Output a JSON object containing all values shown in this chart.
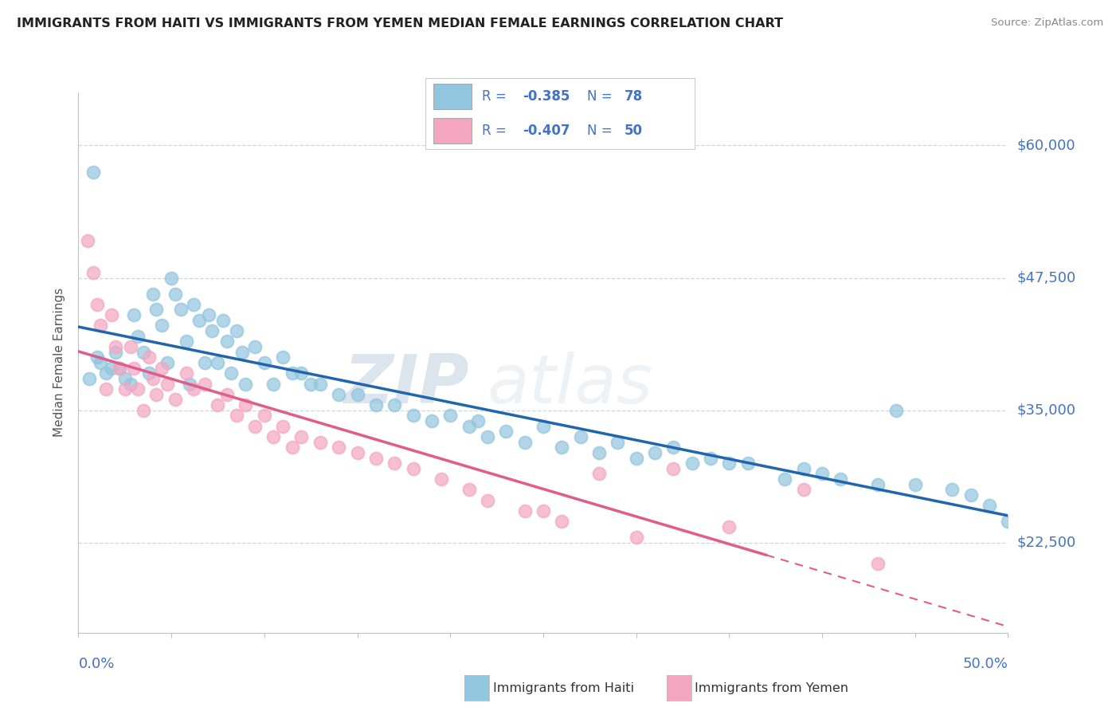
{
  "title": "IMMIGRANTS FROM HAITI VS IMMIGRANTS FROM YEMEN MEDIAN FEMALE EARNINGS CORRELATION CHART",
  "source": "Source: ZipAtlas.com",
  "ylabel": "Median Female Earnings",
  "watermark_zip": "ZIP",
  "watermark_atlas": "atlas",
  "haiti_color": "#92c5de",
  "yemen_color": "#f4a6c0",
  "haiti_line_color": "#2166ac",
  "yemen_line_color": "#e05c8a",
  "axis_label_color": "#4472c4",
  "legend_text_color": "#4472c4",
  "haiti_R": "-0.385",
  "haiti_N": "78",
  "yemen_R": "-0.407",
  "yemen_N": "50",
  "yticks": [
    22500,
    35000,
    47500,
    60000
  ],
  "ytick_labels": [
    "$22,500",
    "$35,000",
    "$47,500",
    "$60,000"
  ],
  "xlim": [
    0.0,
    0.5
  ],
  "ylim": [
    14000,
    65000
  ],
  "haiti_scatter_x": [
    0.006,
    0.01,
    0.012,
    0.015,
    0.018,
    0.02,
    0.022,
    0.025,
    0.028,
    0.03,
    0.032,
    0.035,
    0.038,
    0.04,
    0.042,
    0.045,
    0.048,
    0.008,
    0.05,
    0.052,
    0.055,
    0.058,
    0.06,
    0.062,
    0.065,
    0.068,
    0.07,
    0.072,
    0.075,
    0.078,
    0.08,
    0.082,
    0.085,
    0.088,
    0.09,
    0.095,
    0.1,
    0.105,
    0.11,
    0.115,
    0.12,
    0.125,
    0.13,
    0.14,
    0.15,
    0.16,
    0.17,
    0.18,
    0.19,
    0.2,
    0.21,
    0.215,
    0.22,
    0.23,
    0.24,
    0.25,
    0.26,
    0.27,
    0.28,
    0.29,
    0.3,
    0.31,
    0.32,
    0.33,
    0.34,
    0.35,
    0.36,
    0.38,
    0.39,
    0.4,
    0.41,
    0.43,
    0.44,
    0.45,
    0.47,
    0.48,
    0.49,
    0.5
  ],
  "haiti_scatter_y": [
    38000,
    40000,
    39500,
    38500,
    39000,
    40500,
    39000,
    38000,
    37500,
    44000,
    42000,
    40500,
    38500,
    46000,
    44500,
    43000,
    39500,
    57500,
    47500,
    46000,
    44500,
    41500,
    37500,
    45000,
    43500,
    39500,
    44000,
    42500,
    39500,
    43500,
    41500,
    38500,
    42500,
    40500,
    37500,
    41000,
    39500,
    37500,
    40000,
    38500,
    38500,
    37500,
    37500,
    36500,
    36500,
    35500,
    35500,
    34500,
    34000,
    34500,
    33500,
    34000,
    32500,
    33000,
    32000,
    33500,
    31500,
    32500,
    31000,
    32000,
    30500,
    31000,
    31500,
    30000,
    30500,
    30000,
    30000,
    28500,
    29500,
    29000,
    28500,
    28000,
    35000,
    28000,
    27500,
    27000,
    26000,
    24500
  ],
  "yemen_scatter_x": [
    0.005,
    0.008,
    0.01,
    0.012,
    0.015,
    0.018,
    0.02,
    0.022,
    0.025,
    0.028,
    0.03,
    0.032,
    0.035,
    0.038,
    0.04,
    0.042,
    0.045,
    0.048,
    0.052,
    0.058,
    0.062,
    0.068,
    0.075,
    0.08,
    0.085,
    0.09,
    0.095,
    0.1,
    0.105,
    0.11,
    0.115,
    0.12,
    0.13,
    0.14,
    0.15,
    0.16,
    0.17,
    0.18,
    0.195,
    0.21,
    0.22,
    0.24,
    0.25,
    0.26,
    0.28,
    0.3,
    0.32,
    0.35,
    0.39,
    0.43
  ],
  "yemen_scatter_y": [
    51000,
    48000,
    45000,
    43000,
    37000,
    44000,
    41000,
    39000,
    37000,
    41000,
    39000,
    37000,
    35000,
    40000,
    38000,
    36500,
    39000,
    37500,
    36000,
    38500,
    37000,
    37500,
    35500,
    36500,
    34500,
    35500,
    33500,
    34500,
    32500,
    33500,
    31500,
    32500,
    32000,
    31500,
    31000,
    30500,
    30000,
    29500,
    28500,
    27500,
    26500,
    25500,
    25500,
    24500,
    29000,
    23000,
    29500,
    24000,
    27500,
    20500
  ]
}
